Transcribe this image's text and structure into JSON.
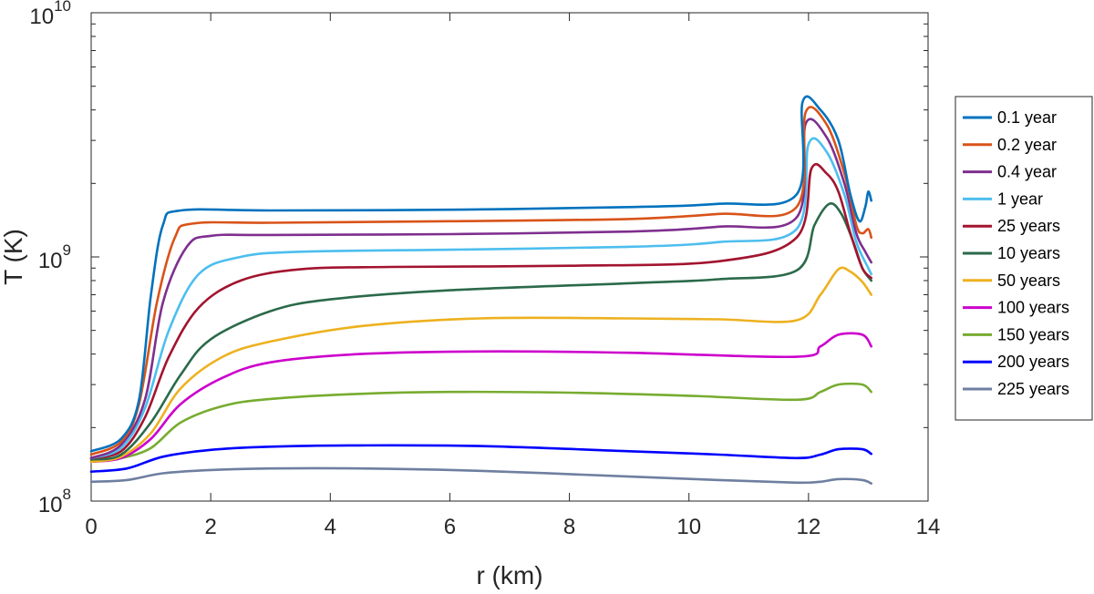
{
  "chart_data": {
    "type": "line",
    "title": "",
    "xlabel": "r (km)",
    "ylabel": "T (K)",
    "xlim": [
      0,
      14
    ],
    "ylim": [
      100000000,
      10000000000
    ],
    "yscale": "log",
    "x_ticks": [
      "0",
      "2",
      "4",
      "6",
      "8",
      "10",
      "12",
      "14"
    ],
    "y_ticks": [
      {
        "base": "10",
        "exp": "8"
      },
      {
        "base": "10",
        "exp": "9"
      },
      {
        "base": "10",
        "exp": "10"
      }
    ],
    "grid": false,
    "legend_position": "right",
    "series": [
      {
        "name": "0.1 year",
        "color": "#0072BD",
        "points": [
          [
            0,
            160000000.0
          ],
          [
            0.5,
            180000000.0
          ],
          [
            0.8,
            260000000.0
          ],
          [
            1.0,
            700000000.0
          ],
          [
            1.2,
            1350000000.0
          ],
          [
            1.5,
            1550000000.0
          ],
          [
            3,
            1550000000.0
          ],
          [
            6,
            1560000000.0
          ],
          [
            9,
            1600000000.0
          ],
          [
            10.5,
            1650000000.0
          ],
          [
            11.8,
            1800000000.0
          ],
          [
            11.9,
            4300000000.0
          ],
          [
            12.2,
            4000000000.0
          ],
          [
            12.5,
            3000000000.0
          ],
          [
            12.7,
            1800000000.0
          ],
          [
            12.85,
            1400000000.0
          ],
          [
            12.95,
            1600000000.0
          ],
          [
            13.0,
            1850000000.0
          ],
          [
            13.05,
            1700000000.0
          ]
        ]
      },
      {
        "name": "0.2 year",
        "color": "#D95319",
        "points": [
          [
            0,
            155000000.0
          ],
          [
            0.5,
            175000000.0
          ],
          [
            0.8,
            250000000.0
          ],
          [
            1.1,
            650000000.0
          ],
          [
            1.4,
            1200000000.0
          ],
          [
            1.7,
            1370000000.0
          ],
          [
            3,
            1380000000.0
          ],
          [
            6,
            1400000000.0
          ],
          [
            9,
            1430000000.0
          ],
          [
            10.5,
            1500000000.0
          ],
          [
            11.8,
            1600000000.0
          ],
          [
            11.95,
            3900000000.0
          ],
          [
            12.3,
            3500000000.0
          ],
          [
            12.6,
            2200000000.0
          ],
          [
            12.8,
            1350000000.0
          ],
          [
            12.9,
            1250000000.0
          ],
          [
            13.0,
            1300000000.0
          ],
          [
            13.05,
            1200000000.0
          ]
        ]
      },
      {
        "name": "0.4 year",
        "color": "#7E2F8E",
        "points": [
          [
            0,
            150000000.0
          ],
          [
            0.5,
            170000000.0
          ],
          [
            0.9,
            260000000.0
          ],
          [
            1.2,
            650000000.0
          ],
          [
            1.6,
            1100000000.0
          ],
          [
            2.0,
            1220000000.0
          ],
          [
            3,
            1230000000.0
          ],
          [
            6,
            1240000000.0
          ],
          [
            9,
            1270000000.0
          ],
          [
            10.5,
            1330000000.0
          ],
          [
            11.8,
            1450000000.0
          ],
          [
            11.95,
            3500000000.0
          ],
          [
            12.3,
            3100000000.0
          ],
          [
            12.6,
            2000000000.0
          ],
          [
            12.8,
            1250000000.0
          ],
          [
            12.95,
            1050000000.0
          ],
          [
            13.05,
            950000000.0
          ]
        ]
      },
      {
        "name": "1 year",
        "color": "#4DBEEE",
        "points": [
          [
            0,
            150000000.0
          ],
          [
            0.5,
            165000000.0
          ],
          [
            0.9,
            240000000.0
          ],
          [
            1.3,
            500000000.0
          ],
          [
            1.8,
            850000000.0
          ],
          [
            2.5,
            1000000000.0
          ],
          [
            3.5,
            1050000000.0
          ],
          [
            6,
            1070000000.0
          ],
          [
            9,
            1100000000.0
          ],
          [
            10.5,
            1150000000.0
          ],
          [
            11.8,
            1300000000.0
          ],
          [
            12.0,
            2900000000.0
          ],
          [
            12.3,
            2700000000.0
          ],
          [
            12.6,
            1800000000.0
          ],
          [
            12.8,
            1150000000.0
          ],
          [
            13.0,
            900000000.0
          ],
          [
            13.05,
            850000000.0
          ]
        ]
      },
      {
        "name": "25 years",
        "color": "#A2142F",
        "points": [
          [
            0,
            150000000.0
          ],
          [
            0.5,
            160000000.0
          ],
          [
            0.9,
            220000000.0
          ],
          [
            1.3,
            390000000.0
          ],
          [
            1.8,
            620000000.0
          ],
          [
            2.5,
            800000000.0
          ],
          [
            3.5,
            890000000.0
          ],
          [
            5,
            910000000.0
          ],
          [
            8,
            920000000.0
          ],
          [
            10.5,
            960000000.0
          ],
          [
            11.8,
            1200000000.0
          ],
          [
            12.05,
            2300000000.0
          ],
          [
            12.3,
            2200000000.0
          ],
          [
            12.5,
            1850000000.0
          ],
          [
            12.7,
            1250000000.0
          ],
          [
            12.9,
            900000000.0
          ],
          [
            13.05,
            820000000.0
          ]
        ]
      },
      {
        "name": "10 years",
        "color": "#2B6A4A",
        "points": [
          [
            0,
            148000000.0
          ],
          [
            0.5,
            155000000.0
          ],
          [
            1.0,
            210000000.0
          ],
          [
            1.5,
            330000000.0
          ],
          [
            2.0,
            460000000.0
          ],
          [
            3,
            600000000.0
          ],
          [
            4,
            670000000.0
          ],
          [
            6,
            730000000.0
          ],
          [
            9,
            780000000.0
          ],
          [
            10.5,
            810000000.0
          ],
          [
            11.8,
            880000000.0
          ],
          [
            12.1,
            1350000000.0
          ],
          [
            12.35,
            1650000000.0
          ],
          [
            12.55,
            1500000000.0
          ],
          [
            12.75,
            1150000000.0
          ],
          [
            12.9,
            900000000.0
          ],
          [
            13.05,
            800000000.0
          ]
        ]
      },
      {
        "name": "50 years",
        "color": "#EDB120",
        "points": [
          [
            0,
            145000000.0
          ],
          [
            0.5,
            152000000.0
          ],
          [
            1.0,
            190000000.0
          ],
          [
            1.5,
            290000000.0
          ],
          [
            2.2,
            390000000.0
          ],
          [
            3,
            450000000.0
          ],
          [
            4.5,
            520000000.0
          ],
          [
            6.5,
            560000000.0
          ],
          [
            9,
            560000000.0
          ],
          [
            10.5,
            555000000.0
          ],
          [
            11.8,
            550000000.0
          ],
          [
            12.2,
            700000000.0
          ],
          [
            12.5,
            890000000.0
          ],
          [
            12.7,
            870000000.0
          ],
          [
            12.9,
            790000000.0
          ],
          [
            13.05,
            700000000.0
          ]
        ]
      },
      {
        "name": "100 years",
        "color": "#CC00CC",
        "points": [
          [
            0,
            145000000.0
          ],
          [
            0.5,
            150000000.0
          ],
          [
            1.0,
            180000000.0
          ],
          [
            1.5,
            250000000.0
          ],
          [
            2.2,
            320000000.0
          ],
          [
            3,
            370000000.0
          ],
          [
            4.5,
            400000000.0
          ],
          [
            6.5,
            410000000.0
          ],
          [
            9,
            405000000.0
          ],
          [
            11.8,
            390000000.0
          ],
          [
            12.2,
            430000000.0
          ],
          [
            12.5,
            480000000.0
          ],
          [
            12.9,
            480000000.0
          ],
          [
            13.05,
            430000000.0
          ]
        ]
      },
      {
        "name": "150 years",
        "color": "#77AC30",
        "points": [
          [
            0,
            145000000.0
          ],
          [
            0.5,
            150000000.0
          ],
          [
            1.0,
            165000000.0
          ],
          [
            1.5,
            210000000.0
          ],
          [
            2.2,
            245000000.0
          ],
          [
            3,
            262000000.0
          ],
          [
            4.5,
            275000000.0
          ],
          [
            6,
            280000000.0
          ],
          [
            8,
            278000000.0
          ],
          [
            10,
            270000000.0
          ],
          [
            11.8,
            260000000.0
          ],
          [
            12.2,
            280000000.0
          ],
          [
            12.5,
            300000000.0
          ],
          [
            12.9,
            300000000.0
          ],
          [
            13.05,
            280000000.0
          ]
        ]
      },
      {
        "name": "200 years",
        "color": "#0000FF",
        "points": [
          [
            0,
            132000000.0
          ],
          [
            0.6,
            136000000.0
          ],
          [
            1.2,
            152000000.0
          ],
          [
            2,
            162000000.0
          ],
          [
            3,
            167000000.0
          ],
          [
            4.5,
            169000000.0
          ],
          [
            6.5,
            168000000.0
          ],
          [
            9,
            160000000.0
          ],
          [
            10.5,
            155000000.0
          ],
          [
            11.8,
            150000000.0
          ],
          [
            12.2,
            155000000.0
          ],
          [
            12.5,
            163000000.0
          ],
          [
            12.9,
            163000000.0
          ],
          [
            13.05,
            156000000.0
          ]
        ]
      },
      {
        "name": "225 years",
        "color": "#6E7FA0",
        "points": [
          [
            0,
            120000000.0
          ],
          [
            0.6,
            122000000.0
          ],
          [
            1.2,
            130000000.0
          ],
          [
            2,
            134000000.0
          ],
          [
            3,
            136000000.0
          ],
          [
            4.5,
            136000000.0
          ],
          [
            6.5,
            133000000.0
          ],
          [
            9,
            126000000.0
          ],
          [
            10.5,
            122000000.0
          ],
          [
            11.8,
            119000000.0
          ],
          [
            12.2,
            120000000.0
          ],
          [
            12.5,
            123000000.0
          ],
          [
            12.9,
            122000000.0
          ],
          [
            13.05,
            118000000.0
          ]
        ]
      }
    ]
  }
}
